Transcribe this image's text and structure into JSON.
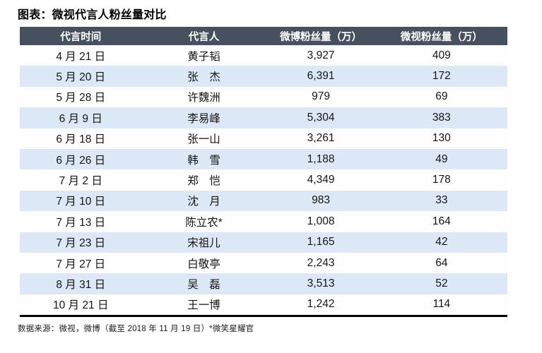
{
  "page": {
    "title": "图表：微视代言人粉丝量对比",
    "source_note": "数据来源：微视，微博（截至 2018 年 11 月 19 日）*微笑星耀官"
  },
  "colors": {
    "header_bg": "#46505E",
    "header_text": "#FFFFFF",
    "alt_row_bg": "#DCE8F5",
    "text": "#141414",
    "bottom_rule": "#000000"
  },
  "chart_data": {
    "type": "table",
    "title": "图表：微视代言人粉丝量对比",
    "columns": [
      "代言时间",
      "代言人",
      "微博粉丝量（万）",
      "微视粉丝量（万）"
    ],
    "rows": [
      [
        "4 月 21 日",
        "黄子韬",
        "3,927",
        "409"
      ],
      [
        "5 月 20 日",
        "张　杰",
        "6,391",
        "172"
      ],
      [
        "5 月 28 日",
        "许魏洲",
        "979",
        "69"
      ],
      [
        "6 月 9 日",
        "李易峰",
        "5,304",
        "383"
      ],
      [
        "6 月 18 日",
        "张一山",
        "3,261",
        "130"
      ],
      [
        "6 月 26 日",
        "韩　雪",
        "1,188",
        "49"
      ],
      [
        "7 月 2 日",
        "郑　恺",
        "4,349",
        "178"
      ],
      [
        "7 月 10 日",
        "沈　月",
        "983",
        "33"
      ],
      [
        "7 月 13 日",
        "陈立农*",
        "1,008",
        "164"
      ],
      [
        "7 月 23 日",
        "宋祖儿",
        "1,165",
        "42"
      ],
      [
        "7 月 27 日",
        "白敬亭",
        "2,243",
        "64"
      ],
      [
        "8 月 31 日",
        "吴　磊",
        "3,513",
        "52"
      ],
      [
        "10 月 21 日",
        "王一博",
        "1,242",
        "114"
      ]
    ],
    "rows_numeric": {
      "weibo_fans_wan": [
        3927,
        6391,
        979,
        5304,
        3261,
        1188,
        4349,
        983,
        1008,
        1165,
        2243,
        3513,
        1242
      ],
      "weishi_fans_wan": [
        409,
        172,
        69,
        383,
        130,
        49,
        178,
        33,
        164,
        42,
        64,
        52,
        114
      ]
    },
    "layout": {
      "zebra_striping": true,
      "header_style": "dark-bar-white-text",
      "alignment": "center"
    },
    "footnote_marker_row": "陈立农*"
  }
}
